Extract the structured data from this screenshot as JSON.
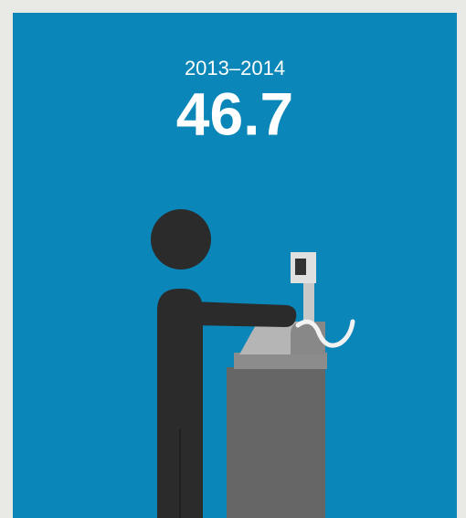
{
  "period": "2013–2014",
  "value": 46.7
}
